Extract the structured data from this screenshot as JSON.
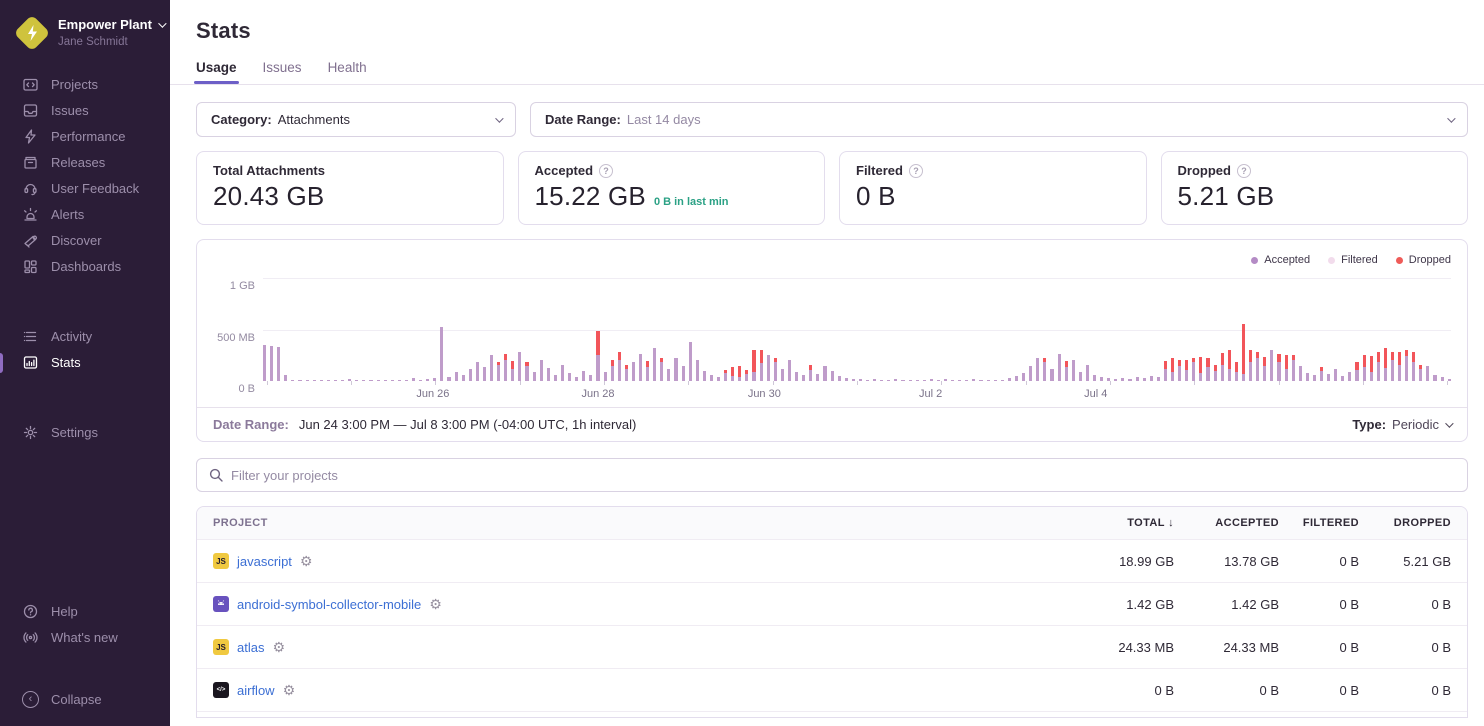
{
  "sidebar": {
    "org": {
      "name": "Empower Plant",
      "user": "Jane Schmidt"
    },
    "nav_primary": [
      {
        "label": "Projects",
        "icon": "projects-icon"
      },
      {
        "label": "Issues",
        "icon": "issues-icon"
      },
      {
        "label": "Performance",
        "icon": "performance-icon"
      },
      {
        "label": "Releases",
        "icon": "releases-icon"
      },
      {
        "label": "User Feedback",
        "icon": "user-feedback-icon"
      },
      {
        "label": "Alerts",
        "icon": "alerts-icon"
      },
      {
        "label": "Discover",
        "icon": "discover-icon"
      },
      {
        "label": "Dashboards",
        "icon": "dashboards-icon"
      }
    ],
    "nav_secondary": [
      {
        "label": "Activity",
        "icon": "activity-icon"
      },
      {
        "label": "Stats",
        "icon": "stats-icon",
        "active": true
      }
    ],
    "nav_tertiary": [
      {
        "label": "Settings",
        "icon": "settings-icon"
      }
    ],
    "nav_footer": [
      {
        "label": "Help",
        "icon": "help-icon"
      },
      {
        "label": "What's new",
        "icon": "whats-new-icon"
      }
    ],
    "collapse_label": "Collapse"
  },
  "header": {
    "title": "Stats",
    "tabs": [
      {
        "label": "Usage",
        "active": true
      },
      {
        "label": "Issues",
        "active": false
      },
      {
        "label": "Health",
        "active": false
      }
    ]
  },
  "filters": {
    "category_label": "Category:",
    "category_value": "Attachments",
    "daterange_label": "Date Range:",
    "daterange_value": "Last 14 days"
  },
  "cards": [
    {
      "label": "Total Attachments",
      "value": "20.43 GB",
      "help": false,
      "sub": ""
    },
    {
      "label": "Accepted",
      "value": "15.22 GB",
      "help": true,
      "sub": "0 B in last min"
    },
    {
      "label": "Filtered",
      "value": "0 B",
      "help": true,
      "sub": ""
    },
    {
      "label": "Dropped",
      "value": "5.21 GB",
      "help": true,
      "sub": ""
    }
  ],
  "chart_data": {
    "type": "bar",
    "stacked": true,
    "unit": "MB",
    "ylim_mb": [
      0,
      1000
    ],
    "yticks": [
      {
        "label": "1 GB",
        "frac": 1.0
      },
      {
        "label": "500 MB",
        "frac": 0.5
      },
      {
        "label": "0 B",
        "frac": 0.0
      }
    ],
    "xticks": [
      {
        "label": "Jun 26",
        "pos": 0.143
      },
      {
        "label": "Jun 28",
        "pos": 0.282
      },
      {
        "label": "Jun 30",
        "pos": 0.422
      },
      {
        "label": "Jul 2",
        "pos": 0.562
      },
      {
        "label": "Jul 4",
        "pos": 0.701
      }
    ],
    "legend": [
      {
        "name": "Accepted",
        "color": "#b48bc5"
      },
      {
        "name": "Filtered",
        "color": "#f2dcec"
      },
      {
        "name": "Dropped",
        "color": "#ef5b58"
      }
    ],
    "colors": {
      "accepted_bar": "#bf9cca",
      "dropped_bar": "#f2555a"
    },
    "series": [
      {
        "name": "Accepted",
        "values": [
          350,
          340,
          330,
          60,
          10,
          8,
          12,
          6,
          10,
          14,
          8,
          10,
          18,
          8,
          12,
          10,
          8,
          14,
          10,
          12,
          8,
          25,
          12,
          15,
          30,
          520,
          40,
          90,
          60,
          120,
          180,
          140,
          250,
          160,
          200,
          120,
          280,
          150,
          90,
          200,
          130,
          60,
          160,
          80,
          40,
          100,
          60,
          250,
          90,
          150,
          200,
          120,
          180,
          260,
          140,
          320,
          180,
          120,
          220,
          150,
          380,
          200,
          100,
          60,
          40,
          80,
          50,
          40,
          70,
          90,
          170,
          250,
          180,
          120,
          200,
          90,
          60,
          110,
          70,
          150,
          100,
          50,
          30,
          15,
          20,
          10,
          15,
          8,
          12,
          18,
          10,
          14,
          8,
          12,
          20,
          10,
          15,
          8,
          12,
          10,
          18,
          8,
          14,
          10,
          12,
          30,
          50,
          80,
          150,
          220,
          180,
          120,
          260,
          140,
          200,
          90,
          160,
          60,
          40,
          25,
          15,
          30,
          20,
          40,
          25,
          50,
          35,
          120,
          90,
          150,
          110,
          180,
          80,
          140,
          100,
          160,
          120,
          90,
          70,
          180,
          220,
          150,
          300,
          180,
          120,
          200,
          150,
          80,
          60,
          100,
          70,
          120,
          50,
          90,
          110,
          140,
          90,
          180,
          130,
          200,
          160,
          240,
          180,
          120,
          150,
          60,
          40,
          20
        ]
      },
      {
        "name": "Dropped",
        "values": [
          0,
          0,
          0,
          0,
          0,
          0,
          0,
          0,
          0,
          0,
          0,
          0,
          0,
          0,
          0,
          0,
          0,
          0,
          0,
          0,
          0,
          0,
          0,
          0,
          0,
          0,
          0,
          0,
          0,
          0,
          0,
          0,
          0,
          30,
          60,
          80,
          0,
          40,
          0,
          0,
          0,
          0,
          0,
          0,
          0,
          0,
          0,
          230,
          0,
          60,
          80,
          40,
          0,
          0,
          60,
          0,
          40,
          0,
          0,
          0,
          0,
          0,
          0,
          0,
          0,
          30,
          90,
          110,
          40,
          210,
          130,
          0,
          40,
          0,
          0,
          0,
          0,
          50,
          0,
          0,
          0,
          0,
          0,
          0,
          0,
          0,
          0,
          0,
          0,
          0,
          0,
          0,
          0,
          0,
          0,
          0,
          0,
          0,
          0,
          0,
          0,
          0,
          0,
          0,
          0,
          0,
          0,
          0,
          0,
          0,
          40,
          0,
          0,
          60,
          0,
          0,
          0,
          0,
          0,
          0,
          0,
          0,
          0,
          0,
          0,
          0,
          0,
          80,
          140,
          60,
          100,
          40,
          160,
          90,
          60,
          120,
          180,
          100,
          490,
          120,
          60,
          90,
          0,
          80,
          140,
          50,
          0,
          0,
          0,
          40,
          0,
          0,
          0,
          0,
          80,
          120,
          160,
          100,
          190,
          80,
          130,
          60,
          100,
          40,
          0,
          0,
          0,
          0
        ]
      }
    ],
    "day_tick_count": 15
  },
  "chart_footer": {
    "label": "Date Range:",
    "value": "Jun 24 3:00 PM — Jul 8 3:00 PM (-04:00 UTC, 1h interval)",
    "type_label": "Type:",
    "type_value": "Periodic"
  },
  "search": {
    "placeholder": "Filter your projects"
  },
  "table": {
    "headers": [
      {
        "label": "Project",
        "sort": false
      },
      {
        "label": "Total",
        "sort": true
      },
      {
        "label": "Accepted",
        "sort": false
      },
      {
        "label": "Filtered",
        "sort": false
      },
      {
        "label": "Dropped",
        "sort": false
      }
    ],
    "rows": [
      {
        "project": "javascript",
        "platform": "javascript",
        "badge": {
          "bg": "#f0c940",
          "fg": "#241c2c",
          "text": "JS"
        },
        "total": "18.99 GB",
        "accepted": "13.78 GB",
        "filtered": "0 B",
        "dropped": "5.21 GB"
      },
      {
        "project": "android-symbol-collector-mobile",
        "platform": "android",
        "badge": {
          "bg": "#6852be",
          "fg": "#ffffff",
          "text": ""
        },
        "total": "1.42 GB",
        "accepted": "1.42 GB",
        "filtered": "0 B",
        "dropped": "0 B"
      },
      {
        "project": "atlas",
        "platform": "javascript",
        "badge": {
          "bg": "#f0c940",
          "fg": "#241c2c",
          "text": "JS"
        },
        "total": "24.33 MB",
        "accepted": "24.33 MB",
        "filtered": "0 B",
        "dropped": "0 B"
      },
      {
        "project": "airflow",
        "platform": "code",
        "badge": {
          "bg": "#1a161f",
          "fg": "#ffffff",
          "text": "</>"
        },
        "total": "0 B",
        "accepted": "0 B",
        "filtered": "0 B",
        "dropped": "0 B"
      }
    ]
  }
}
